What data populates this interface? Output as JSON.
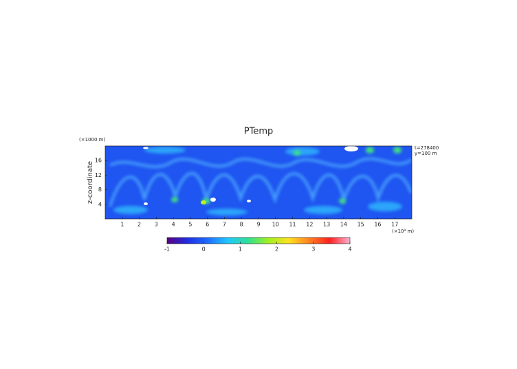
{
  "chart_data": {
    "type": "heatmap",
    "title": "PTemp",
    "x_label": "(×10⁴ m)",
    "y_label": "z-coordinate",
    "y_unit_label": "(×1000 m)",
    "annotations": [
      "t=278400",
      "y=100 m"
    ],
    "xlim": [
      0,
      18
    ],
    "xticks": [
      1,
      2,
      3,
      4,
      5,
      6,
      7,
      8,
      9,
      10,
      11,
      12,
      13,
      14,
      15,
      16,
      17
    ],
    "ylim": [
      0,
      20
    ],
    "yticks": [
      4,
      8,
      12,
      16
    ],
    "colorbar": {
      "lim": [
        -1,
        4
      ],
      "ticks": [
        -1,
        0,
        1,
        2,
        3,
        4
      ],
      "colors": [
        "#5a0080",
        "#1f2ee0",
        "#1e6cff",
        "#20c8ff",
        "#30e090",
        "#a0f020",
        "#ffe020",
        "#ff8020",
        "#ff2020",
        "#ffb0d0"
      ]
    }
  }
}
